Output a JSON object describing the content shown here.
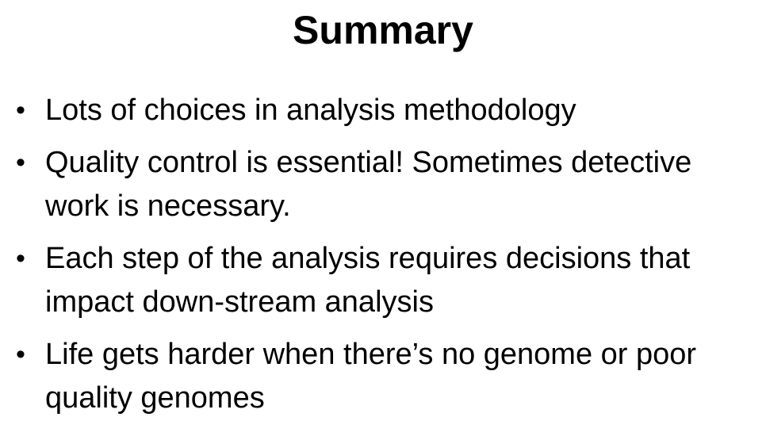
{
  "slide": {
    "title": "Summary",
    "bullet_glyph": "•",
    "bullets": [
      {
        "text": "Lots of choices in analysis methodology"
      },
      {
        "text": "Quality control is essential! Sometimes detective work is necessary."
      },
      {
        "text": "Each step of the analysis requires decisions that impact down-stream analysis"
      },
      {
        "text": "Life gets harder when there’s no genome or poor quality genomes"
      }
    ]
  }
}
